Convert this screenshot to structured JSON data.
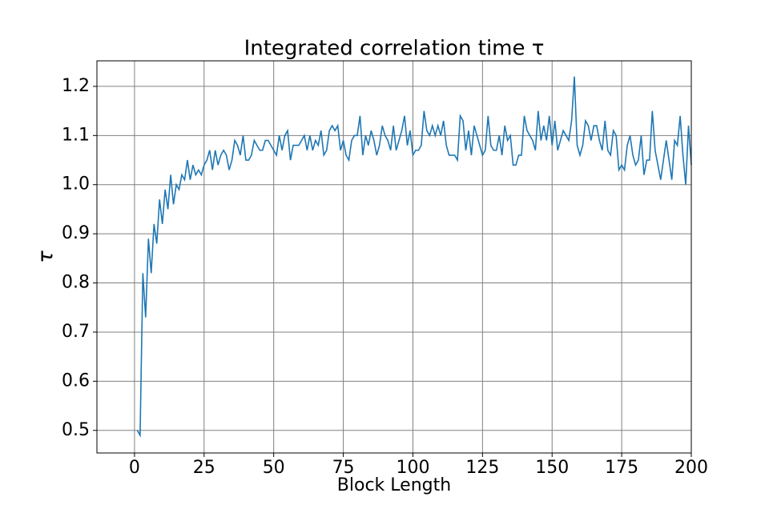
{
  "chart_data": {
    "type": "line",
    "title": "Integrated correlation time  τ",
    "xlabel": "Block Length",
    "ylabel": "τ",
    "color": "#1f77b4",
    "grid": true,
    "xlim": [
      -13.5,
      200
    ],
    "ylim": [
      0.454,
      1.252
    ],
    "xticks": [
      0,
      25,
      50,
      75,
      100,
      125,
      150,
      175,
      200
    ],
    "yticks": [
      0.5,
      0.6,
      0.7,
      0.8,
      0.9,
      {
        "value": 1,
        "label": "1.0"
      },
      1.1,
      1.2
    ],
    "x": [
      1,
      2,
      3,
      4,
      5,
      6,
      7,
      8,
      9,
      10,
      11,
      12,
      13,
      14,
      15,
      16,
      17,
      18,
      19,
      20,
      21,
      22,
      23,
      24,
      25,
      26,
      27,
      28,
      29,
      30,
      31,
      32,
      33,
      34,
      35,
      36,
      37,
      38,
      39,
      40,
      41,
      42,
      43,
      44,
      45,
      46,
      47,
      48,
      49,
      50,
      51,
      52,
      53,
      54,
      55,
      56,
      57,
      58,
      59,
      60,
      61,
      62,
      63,
      64,
      65,
      66,
      67,
      68,
      69,
      70,
      71,
      72,
      73,
      74,
      75,
      76,
      77,
      78,
      79,
      80,
      81,
      82,
      83,
      84,
      85,
      86,
      87,
      88,
      89,
      90,
      91,
      92,
      93,
      94,
      95,
      96,
      97,
      98,
      99,
      100,
      101,
      102,
      103,
      104,
      105,
      106,
      107,
      108,
      109,
      110,
      111,
      112,
      113,
      114,
      115,
      116,
      117,
      118,
      119,
      120,
      121,
      122,
      123,
      124,
      125,
      126,
      127,
      128,
      129,
      130,
      131,
      132,
      133,
      134,
      135,
      136,
      137,
      138,
      139,
      140,
      141,
      142,
      143,
      144,
      145,
      146,
      147,
      148,
      149,
      150,
      151,
      152,
      153,
      154,
      155,
      156,
      157,
      158,
      159,
      160,
      161,
      162,
      163,
      164,
      165,
      166,
      167,
      168,
      169,
      170,
      171,
      172,
      173,
      174,
      175,
      176,
      177,
      178,
      179,
      180,
      181,
      182,
      183,
      184,
      185,
      186,
      187,
      188,
      189,
      190,
      191,
      192,
      193,
      194,
      195,
      196,
      197,
      198,
      199,
      200
    ],
    "values": [
      0.5,
      0.49,
      0.82,
      0.73,
      0.89,
      0.82,
      0.92,
      0.88,
      0.97,
      0.92,
      0.99,
      0.95,
      1.02,
      0.96,
      1.0,
      0.99,
      1.02,
      1.01,
      1.05,
      1.01,
      1.04,
      1.02,
      1.03,
      1.02,
      1.04,
      1.05,
      1.07,
      1.03,
      1.07,
      1.04,
      1.06,
      1.07,
      1.06,
      1.03,
      1.05,
      1.09,
      1.08,
      1.06,
      1.1,
      1.05,
      1.05,
      1.06,
      1.09,
      1.08,
      1.07,
      1.07,
      1.09,
      1.09,
      1.08,
      1.07,
      1.06,
      1.1,
      1.07,
      1.1,
      1.11,
      1.05,
      1.08,
      1.08,
      1.08,
      1.09,
      1.1,
      1.07,
      1.1,
      1.07,
      1.09,
      1.08,
      1.11,
      1.06,
      1.07,
      1.11,
      1.12,
      1.11,
      1.12,
      1.07,
      1.09,
      1.06,
      1.05,
      1.09,
      1.1,
      1.1,
      1.14,
      1.06,
      1.1,
      1.08,
      1.11,
      1.09,
      1.06,
      1.08,
      1.12,
      1.1,
      1.09,
      1.07,
      1.12,
      1.07,
      1.09,
      1.11,
      1.14,
      1.08,
      1.11,
      1.06,
      1.07,
      1.07,
      1.08,
      1.15,
      1.11,
      1.1,
      1.12,
      1.1,
      1.12,
      1.1,
      1.13,
      1.08,
      1.06,
      1.06,
      1.06,
      1.05,
      1.14,
      1.13,
      1.07,
      1.11,
      1.06,
      1.12,
      1.1,
      1.08,
      1.06,
      1.07,
      1.14,
      1.08,
      1.07,
      1.07,
      1.1,
      1.06,
      1.12,
      1.09,
      1.1,
      1.04,
      1.04,
      1.06,
      1.06,
      1.14,
      1.11,
      1.1,
      1.09,
      1.07,
      1.15,
      1.09,
      1.12,
      1.09,
      1.14,
      1.08,
      1.13,
      1.07,
      1.09,
      1.11,
      1.1,
      1.09,
      1.13,
      1.22,
      1.08,
      1.06,
      1.08,
      1.13,
      1.12,
      1.09,
      1.12,
      1.12,
      1.09,
      1.07,
      1.13,
      1.07,
      1.06,
      1.11,
      1.1,
      1.03,
      1.04,
      1.03,
      1.08,
      1.1,
      1.06,
      1.04,
      1.05,
      1.1,
      1.02,
      1.05,
      1.05,
      1.15,
      1.07,
      1.04,
      1.01,
      1.05,
      1.09,
      1.05,
      1.01,
      1.09,
      1.08,
      1.14,
      1.06,
      1.0,
      1.12,
      1.04
    ]
  }
}
